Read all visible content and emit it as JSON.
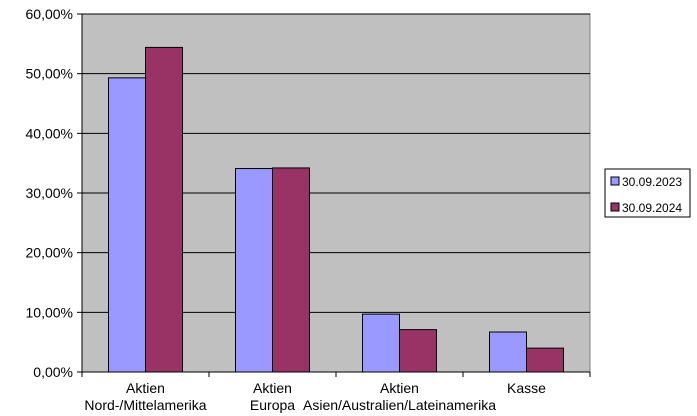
{
  "chart_data": {
    "type": "bar",
    "categories": [
      [
        "Aktien",
        "Nord-/Mittelamerika"
      ],
      [
        "Aktien",
        "Europa"
      ],
      [
        "Aktien",
        "Asien/Australien/Lateinamerika"
      ],
      [
        "Kasse"
      ]
    ],
    "series": [
      {
        "name": "30.09.2023",
        "color": "#9999ff",
        "values": [
          49.3,
          34.1,
          9.7,
          6.7
        ]
      },
      {
        "name": "30.09.2024",
        "color": "#993366",
        "values": [
          54.4,
          34.2,
          7.1,
          4.0
        ]
      }
    ],
    "y_ticks": [
      "0,00%",
      "10,00%",
      "20,00%",
      "30,00%",
      "40,00%",
      "50,00%",
      "60,00%"
    ],
    "ylim": [
      0,
      60
    ],
    "grid": true,
    "plot_background": "#c0c0c0",
    "legend_position": "right"
  }
}
